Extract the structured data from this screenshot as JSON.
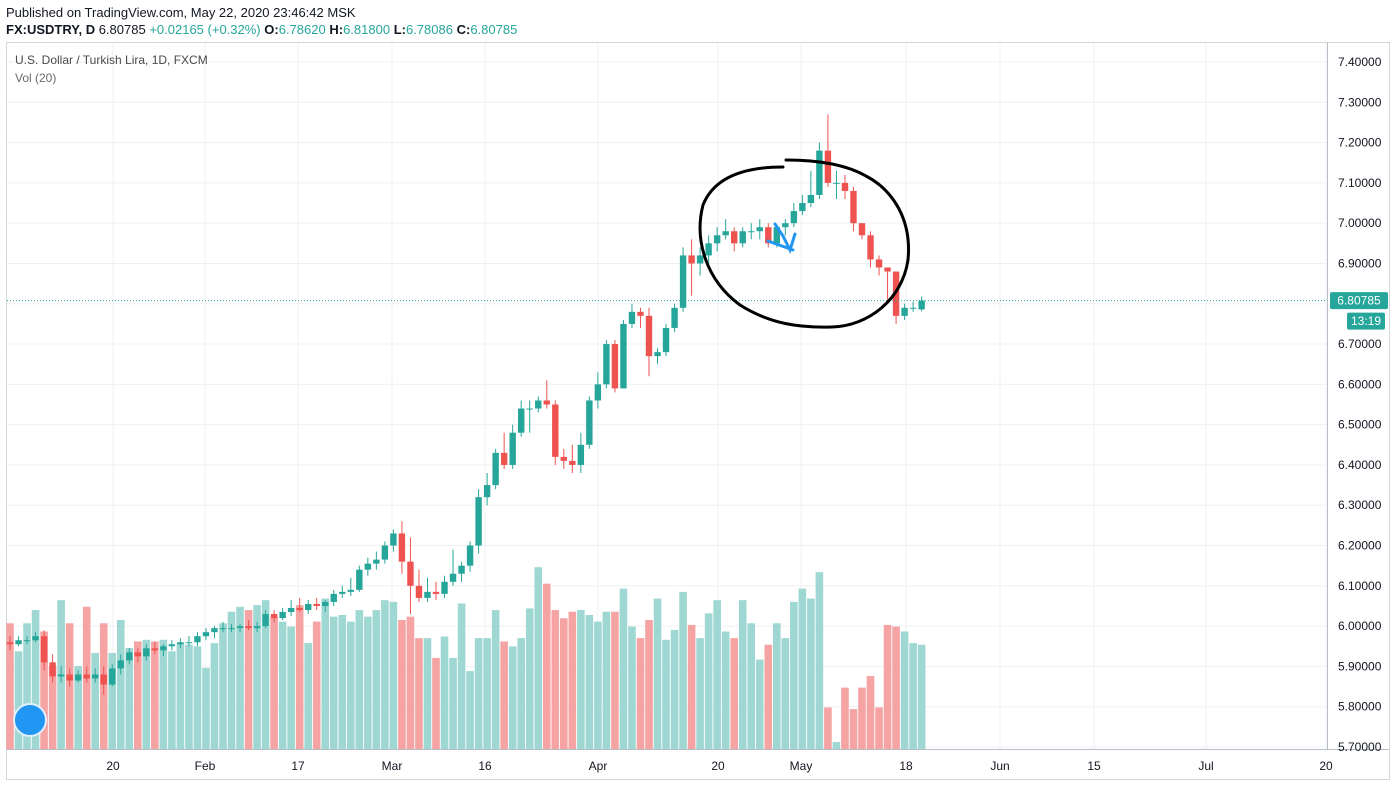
{
  "header": {
    "published": "Published on TradingView.com, May 22, 2020 23:46:42 MSK",
    "symbol": "FX:USDTRY, D",
    "last": "6.80785",
    "change": "+0.02165 (+0.32%)",
    "o_label": "O:",
    "o": "6.78620",
    "h_label": "H:",
    "h": "6.81800",
    "l_label": "L:",
    "l": "6.78086",
    "c_label": "C:",
    "c": "6.80785"
  },
  "legend": {
    "title": "U.S. Dollar / Turkish Lira, 1D, FXCM",
    "volume": "Vol (20)"
  },
  "price_badge": {
    "value": "6.80785",
    "countdown": "13:19"
  },
  "colors": {
    "up": "#26a69a",
    "down": "#ef5350",
    "vol_up": "#9fd8d3",
    "vol_down": "#f5a3a3",
    "grid": "#eef0f3"
  },
  "chart_data": {
    "type": "candlestick",
    "y_ticks": [
      "7.40000",
      "7.30000",
      "7.20000",
      "7.10000",
      "7.00000",
      "6.90000",
      "6.80000",
      "6.70000",
      "6.60000",
      "6.50000",
      "6.40000",
      "6.30000",
      "6.20000",
      "6.10000",
      "6.00000",
      "5.90000",
      "5.80000",
      "5.70000"
    ],
    "ylim": [
      5.7,
      7.4
    ],
    "x_ticks": [
      "20",
      "Feb",
      "17",
      "Mar",
      "16",
      "Apr",
      "20",
      "May",
      "18",
      "Jun",
      "15",
      "Jul",
      "20"
    ],
    "current_price": 6.80785,
    "candles": [
      [
        5.96,
        5.975,
        5.94,
        5.955
      ],
      [
        5.955,
        5.975,
        5.95,
        5.965
      ],
      [
        5.965,
        5.975,
        5.955,
        5.965
      ],
      [
        5.965,
        5.985,
        5.96,
        5.975
      ],
      [
        5.975,
        5.99,
        5.89,
        5.91
      ],
      [
        5.91,
        5.93,
        5.86,
        5.875
      ],
      [
        5.875,
        5.9,
        5.86,
        5.88
      ],
      [
        5.88,
        5.895,
        5.85,
        5.865
      ],
      [
        5.865,
        5.89,
        5.86,
        5.88
      ],
      [
        5.88,
        5.9,
        5.86,
        5.87
      ],
      [
        5.87,
        5.895,
        5.86,
        5.88
      ],
      [
        5.88,
        5.9,
        5.83,
        5.855
      ],
      [
        5.855,
        5.905,
        5.85,
        5.895
      ],
      [
        5.895,
        5.93,
        5.88,
        5.915
      ],
      [
        5.915,
        5.945,
        5.905,
        5.935
      ],
      [
        5.935,
        5.945,
        5.91,
        5.925
      ],
      [
        5.925,
        5.955,
        5.915,
        5.945
      ],
      [
        5.945,
        5.96,
        5.93,
        5.94
      ],
      [
        5.94,
        5.955,
        5.925,
        5.95
      ],
      [
        5.95,
        5.965,
        5.94,
        5.955
      ],
      [
        5.955,
        5.97,
        5.945,
        5.96
      ],
      [
        5.96,
        5.975,
        5.95,
        5.96
      ],
      [
        5.96,
        5.985,
        5.95,
        5.975
      ],
      [
        5.975,
        5.995,
        5.965,
        5.985
      ],
      [
        5.985,
        6.0,
        5.97,
        5.995
      ],
      [
        5.995,
        6.01,
        5.985,
        5.995
      ],
      [
        5.995,
        6.005,
        5.985,
        5.995
      ],
      [
        5.995,
        6.005,
        5.985,
        6.0
      ],
      [
        6.0,
        6.015,
        5.99,
        5.995
      ],
      [
        5.995,
        6.01,
        5.985,
        6.0
      ],
      [
        6.0,
        6.04,
        5.995,
        6.03
      ],
      [
        6.03,
        6.04,
        6.01,
        6.02
      ],
      [
        6.02,
        6.045,
        6.015,
        6.035
      ],
      [
        6.035,
        6.065,
        6.025,
        6.045
      ],
      [
        6.045,
        6.07,
        6.035,
        6.04
      ],
      [
        6.04,
        6.065,
        6.03,
        6.055
      ],
      [
        6.055,
        6.07,
        6.04,
        6.05
      ],
      [
        6.05,
        6.065,
        6.035,
        6.06
      ],
      [
        6.06,
        6.09,
        6.05,
        6.08
      ],
      [
        6.08,
        6.1,
        6.07,
        6.085
      ],
      [
        6.085,
        6.12,
        6.075,
        6.09
      ],
      [
        6.09,
        6.15,
        6.085,
        6.14
      ],
      [
        6.14,
        6.17,
        6.125,
        6.155
      ],
      [
        6.155,
        6.185,
        6.14,
        6.165
      ],
      [
        6.165,
        6.21,
        6.155,
        6.2
      ],
      [
        6.2,
        6.24,
        6.185,
        6.23
      ],
      [
        6.23,
        6.26,
        6.13,
        6.16
      ],
      [
        6.16,
        6.22,
        6.03,
        6.1
      ],
      [
        6.1,
        6.14,
        6.06,
        6.07
      ],
      [
        6.07,
        6.12,
        6.06,
        6.085
      ],
      [
        6.085,
        6.11,
        6.065,
        6.08
      ],
      [
        6.08,
        6.125,
        6.07,
        6.11
      ],
      [
        6.11,
        6.19,
        6.1,
        6.13
      ],
      [
        6.13,
        6.16,
        6.11,
        6.15
      ],
      [
        6.15,
        6.21,
        6.135,
        6.2
      ],
      [
        6.2,
        6.34,
        6.18,
        6.32
      ],
      [
        6.32,
        6.38,
        6.3,
        6.35
      ],
      [
        6.35,
        6.44,
        6.34,
        6.43
      ],
      [
        6.43,
        6.48,
        6.39,
        6.4
      ],
      [
        6.4,
        6.5,
        6.39,
        6.48
      ],
      [
        6.48,
        6.56,
        6.47,
        6.54
      ],
      [
        6.54,
        6.56,
        6.48,
        6.54
      ],
      [
        6.54,
        6.57,
        6.53,
        6.56
      ],
      [
        6.56,
        6.61,
        6.54,
        6.55
      ],
      [
        6.55,
        6.56,
        6.4,
        6.42
      ],
      [
        6.42,
        6.44,
        6.39,
        6.41
      ],
      [
        6.41,
        6.45,
        6.38,
        6.4
      ],
      [
        6.4,
        6.48,
        6.38,
        6.45
      ],
      [
        6.45,
        6.57,
        6.44,
        6.56
      ],
      [
        6.56,
        6.63,
        6.54,
        6.6
      ],
      [
        6.6,
        6.71,
        6.59,
        6.7
      ],
      [
        6.7,
        6.71,
        6.58,
        6.59
      ],
      [
        6.59,
        6.76,
        6.59,
        6.75
      ],
      [
        6.75,
        6.8,
        6.74,
        6.78
      ],
      [
        6.78,
        6.79,
        6.74,
        6.77
      ],
      [
        6.77,
        6.79,
        6.62,
        6.67
      ],
      [
        6.67,
        6.69,
        6.65,
        6.68
      ],
      [
        6.68,
        6.75,
        6.67,
        6.74
      ],
      [
        6.74,
        6.8,
        6.73,
        6.79
      ],
      [
        6.79,
        6.94,
        6.78,
        6.92
      ],
      [
        6.92,
        6.96,
        6.82,
        6.9
      ],
      [
        6.9,
        6.94,
        6.87,
        6.92
      ],
      [
        6.92,
        6.97,
        6.9,
        6.95
      ],
      [
        6.95,
        6.99,
        6.93,
        6.97
      ],
      [
        6.97,
        7.01,
        6.96,
        6.98
      ],
      [
        6.98,
        6.99,
        6.93,
        6.95
      ],
      [
        6.95,
        6.99,
        6.94,
        6.98
      ],
      [
        6.98,
        7.0,
        6.96,
        6.98
      ],
      [
        6.98,
        7.01,
        6.96,
        6.99
      ],
      [
        6.99,
        7.0,
        6.94,
        6.95
      ],
      [
        6.95,
        6.995,
        6.94,
        6.99
      ],
      [
        6.99,
        7.01,
        6.97,
        7.0
      ],
      [
        7.0,
        7.05,
        6.99,
        7.03
      ],
      [
        7.03,
        7.07,
        7.02,
        7.05
      ],
      [
        7.05,
        7.13,
        7.04,
        7.07
      ],
      [
        7.07,
        7.2,
        7.06,
        7.18
      ],
      [
        7.18,
        7.27,
        7.09,
        7.1
      ],
      [
        7.1,
        7.13,
        7.06,
        7.1
      ],
      [
        7.1,
        7.12,
        7.06,
        7.08
      ],
      [
        7.08,
        7.09,
        6.98,
        7.0
      ],
      [
        7.0,
        7.0,
        6.96,
        6.97
      ],
      [
        6.97,
        6.98,
        6.89,
        6.91
      ],
      [
        6.91,
        6.92,
        6.87,
        6.89
      ],
      [
        6.89,
        6.89,
        6.81,
        6.88
      ],
      [
        6.88,
        6.88,
        6.75,
        6.77
      ],
      [
        6.77,
        6.8,
        6.76,
        6.79
      ],
      [
        6.79,
        6.805,
        6.78,
        6.79
      ],
      [
        6.786,
        6.818,
        6.781,
        6.808
      ]
    ],
    "volumes": [
      72,
      55,
      72,
      80,
      67,
      46,
      86,
      72,
      46,
      82,
      54,
      72,
      54,
      74,
      57,
      61,
      62,
      61,
      62,
      55,
      60,
      59,
      58,
      45,
      60,
      72,
      79,
      82,
      80,
      83,
      86,
      76,
      73,
      70,
      83,
      60,
      73,
      87,
      76,
      77,
      73,
      80,
      76,
      80,
      86,
      85,
      74,
      76,
      63,
      63,
      51,
      64,
      51,
      84,
      43,
      63,
      63,
      80,
      61,
      58,
      63,
      81,
      106,
      96,
      80,
      75,
      79,
      80,
      77,
      73,
      79,
      79,
      93,
      70,
      63,
      74,
      87,
      62,
      68,
      91,
      71,
      63,
      78,
      86,
      67,
      63,
      86,
      72,
      50,
      59,
      72,
      63,
      85,
      93,
      87,
      103,
      21,
      0,
      33,
      20,
      33,
      40,
      21,
      71,
      70,
      67,
      60,
      59
    ],
    "vol_top": 4.2
  }
}
